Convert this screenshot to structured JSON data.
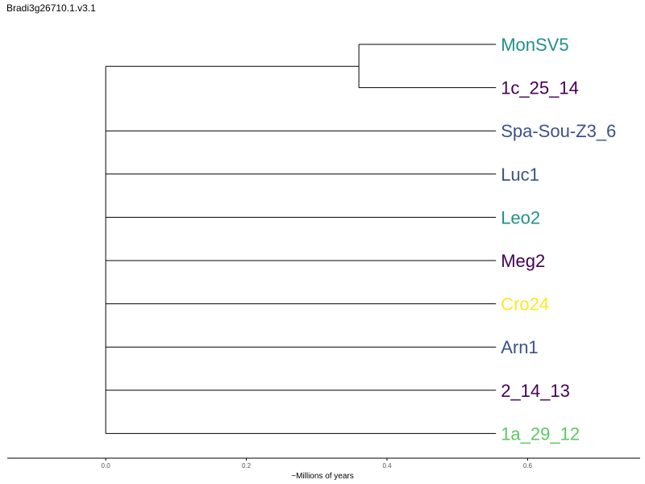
{
  "title": "Bradi3g26710.1.v3.1",
  "axis": {
    "xlabel": "~Millions of years",
    "ticks": [
      0.0,
      0.2,
      0.4,
      0.6
    ],
    "tick_labels": [
      "0.0",
      "0.2",
      "0.4",
      "0.6"
    ],
    "xlim": [
      -0.14,
      0.76
    ]
  },
  "tree": {
    "leaf_age": 0.555,
    "clade": {
      "age": 0.36,
      "members": [
        "MonSV5",
        "1c_25_14"
      ]
    },
    "leaves": [
      {
        "name": "MonSV5",
        "color": "#21908c"
      },
      {
        "name": "1c_25_14",
        "color": "#440154"
      },
      {
        "name": "Spa-Sou-Z3_6",
        "color": "#3b528b"
      },
      {
        "name": "Luc1",
        "color": "#3b528b"
      },
      {
        "name": "Leo2",
        "color": "#21908c"
      },
      {
        "name": "Meg2",
        "color": "#440154"
      },
      {
        "name": "Cro24",
        "color": "#fde725"
      },
      {
        "name": "Arn1",
        "color": "#3b528b"
      },
      {
        "name": "2_14_13",
        "color": "#440154"
      },
      {
        "name": "1a_29_12",
        "color": "#5dc863"
      }
    ]
  }
}
